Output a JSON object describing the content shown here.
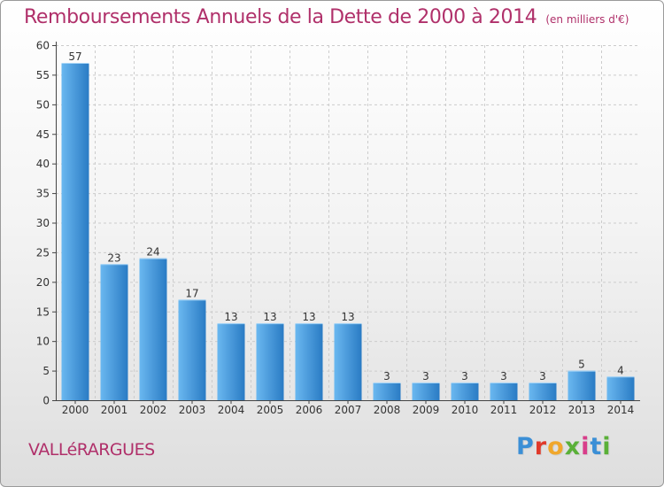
{
  "title": "Remboursements Annuels de la Dette de 2000 à 2014",
  "unit_note": "(en milliers d'€)",
  "commune": "VALLéRARGUES",
  "brand": {
    "name": "Proxiti",
    "letters": [
      "P",
      "r",
      "o",
      "x",
      "i",
      "t",
      "i"
    ]
  },
  "colors": {
    "bar_light": "#6ab8f0",
    "bar_dark": "#2a7bc4",
    "accent": "#b0306a",
    "grid": "#cccccc"
  },
  "chart_data": {
    "type": "bar",
    "title": "Remboursements Annuels de la Dette de 2000 à 2014",
    "xlabel": "",
    "ylabel": "en milliers d'€",
    "categories": [
      "2000",
      "2001",
      "2002",
      "2003",
      "2004",
      "2005",
      "2006",
      "2007",
      "2008",
      "2009",
      "2010",
      "2011",
      "2012",
      "2013",
      "2014"
    ],
    "values": [
      57,
      23,
      24,
      17,
      13,
      13,
      13,
      13,
      3,
      3,
      3,
      3,
      3,
      5,
      4
    ],
    "ylim": [
      0,
      60
    ],
    "yticks": [
      0,
      5,
      10,
      15,
      20,
      25,
      30,
      35,
      40,
      45,
      50,
      55,
      60
    ],
    "grid": true
  }
}
